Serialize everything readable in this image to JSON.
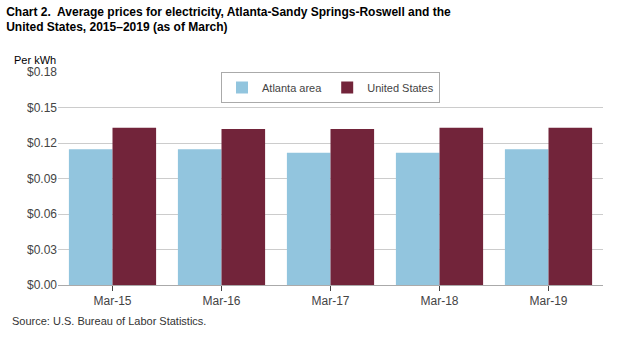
{
  "chart_data": {
    "type": "bar",
    "title": "Chart 2.  Average prices for electricity, Atlanta-Sandy Springs-Roswell and the\nUnited States, 2015–2019 (as of March)",
    "ylabel": "Per kWh",
    "annotations": [
      "Source: U.S. Bureau of Labor Statistics."
    ],
    "categories": [
      "Mar-15",
      "Mar-16",
      "Mar-17",
      "Mar-18",
      "Mar-19"
    ],
    "series": [
      {
        "name": "Atlanta area",
        "color": "#92C5DE",
        "values": [
          0.1148,
          0.1148,
          0.1118,
          0.1118,
          0.1148
        ]
      },
      {
        "name": "United States",
        "color": "#72243A",
        "values": [
          0.1328,
          0.1318,
          0.1318,
          0.1328,
          0.1328
        ]
      }
    ],
    "ylim": [
      0,
      0.18
    ],
    "yticks": [
      {
        "value": 0,
        "label": "$0.00"
      },
      {
        "value": 0.03,
        "label": "$0.03"
      },
      {
        "value": 0.06,
        "label": "$0.06"
      },
      {
        "value": 0.09,
        "label": "$0.09"
      },
      {
        "value": 0.12,
        "label": "$0.12"
      },
      {
        "value": 0.15,
        "label": "$0.15"
      },
      {
        "value": 0.18,
        "label": "$0.18"
      }
    ],
    "grid": true,
    "legend": "top"
  }
}
